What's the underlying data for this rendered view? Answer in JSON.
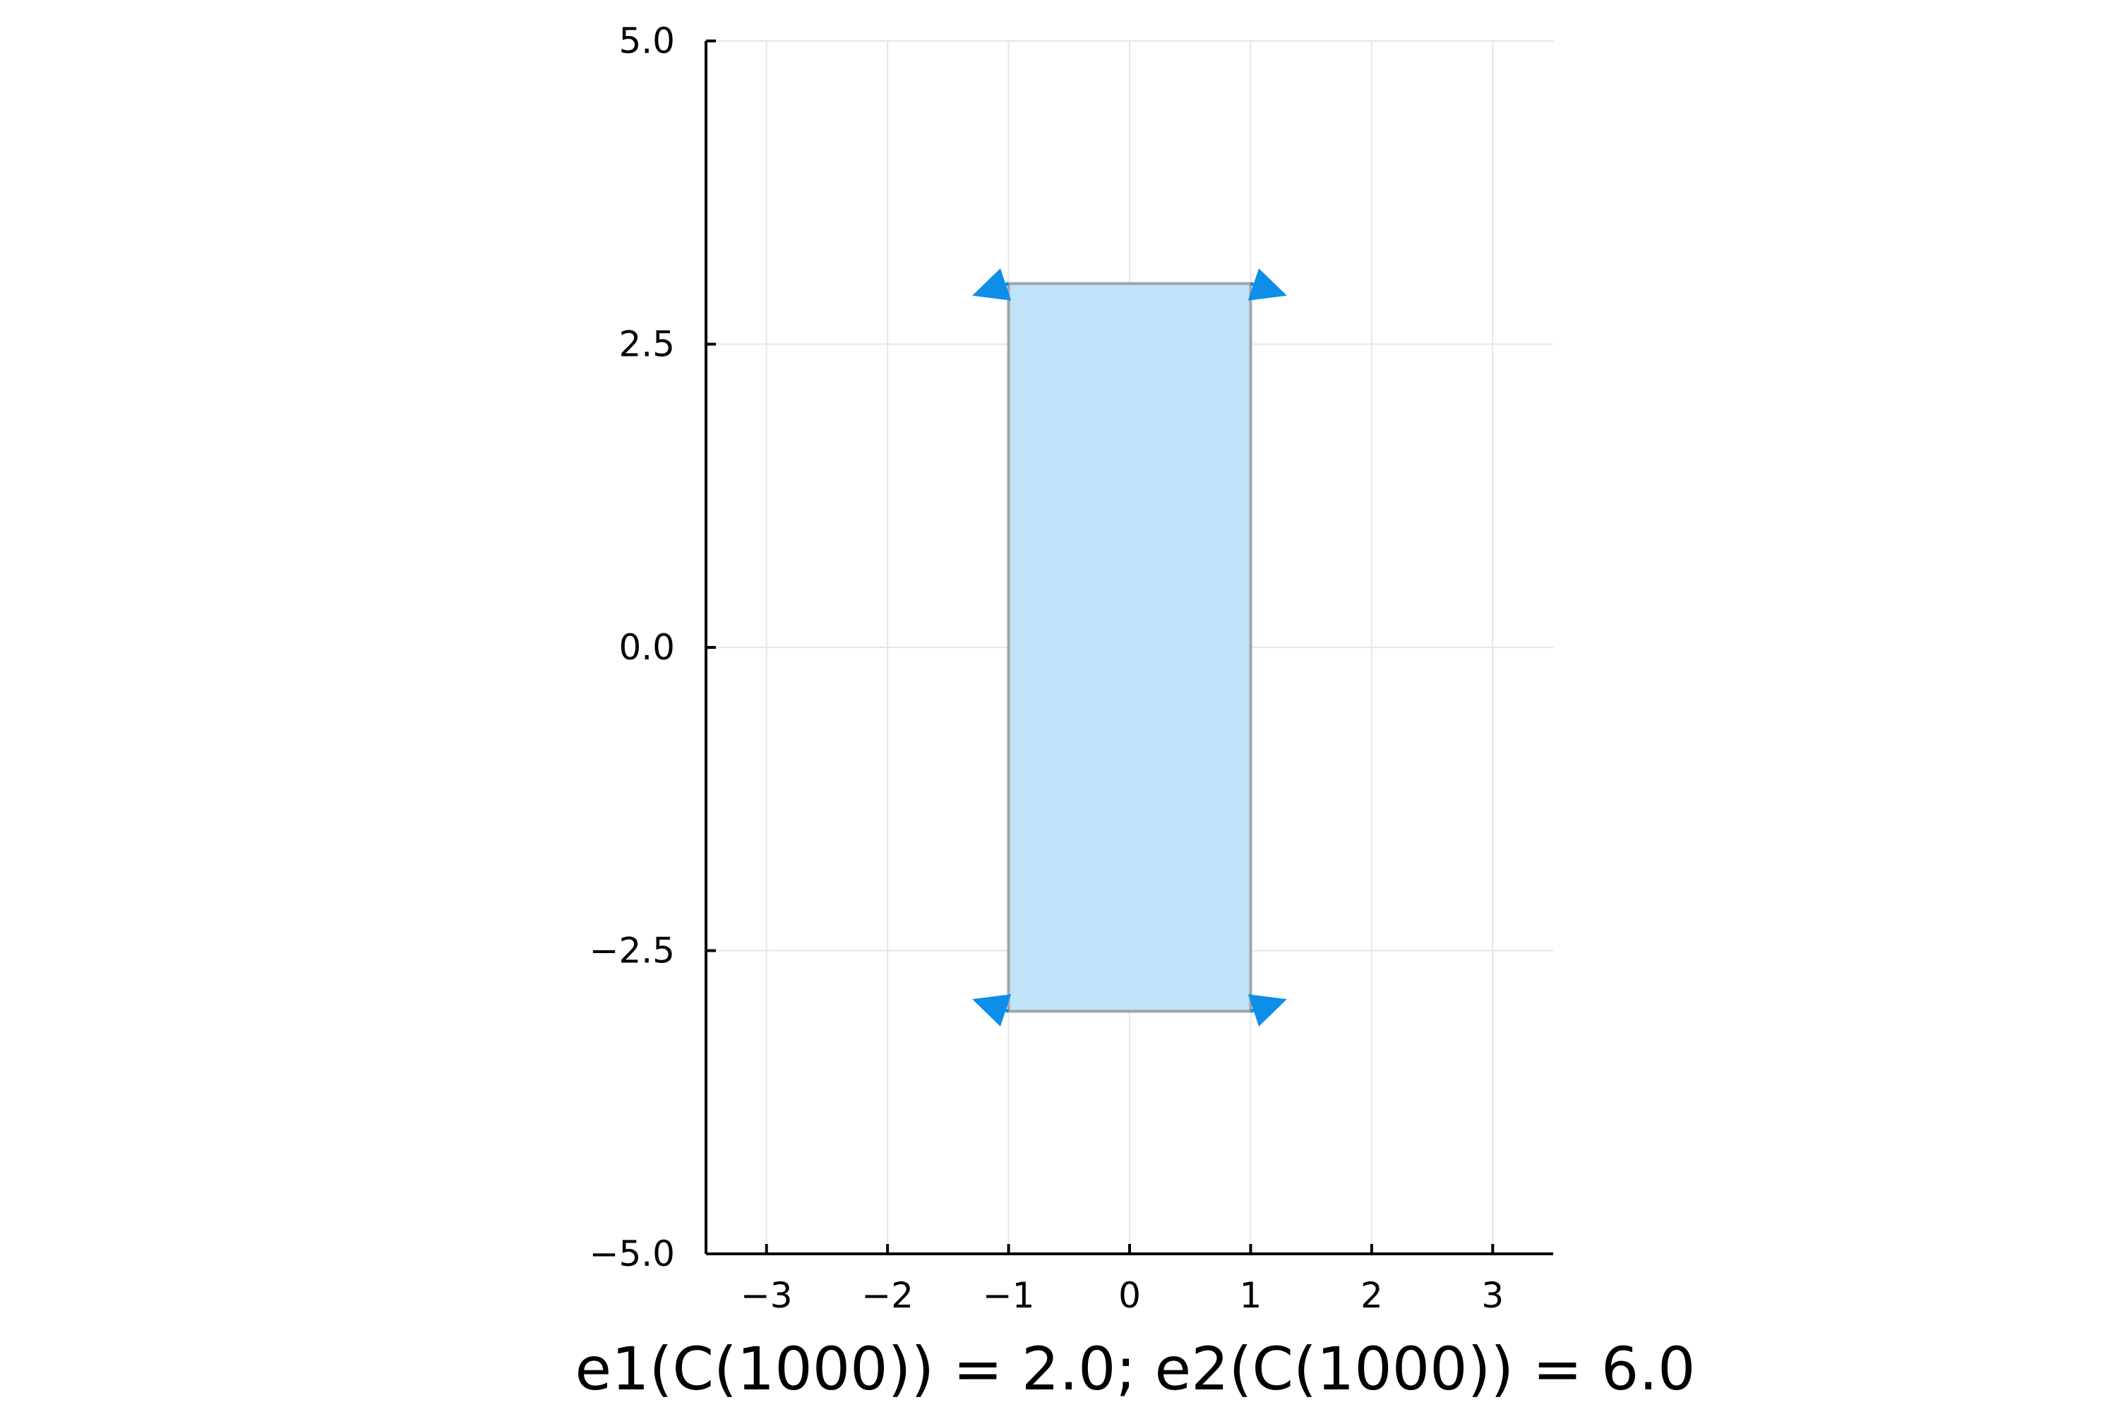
{
  "chart_data": {
    "type": "area",
    "title": "",
    "xlabel": "e1(C(1000)) = 2.0; e2(C(1000)) = 6.0",
    "ylabel": "",
    "xlim": [
      -3.5,
      3.5
    ],
    "ylim": [
      -5.0,
      5.0
    ],
    "xticks": [
      -3,
      -2,
      -1,
      0,
      1,
      2,
      3
    ],
    "xtick_labels": [
      "−3",
      "−2",
      "−1",
      "0",
      "1",
      "2",
      "3"
    ],
    "yticks": [
      -5.0,
      -2.5,
      0.0,
      2.5,
      5.0
    ],
    "ytick_labels": [
      "−5.0",
      "−2.5",
      "0.0",
      "2.5",
      "5.0"
    ],
    "grid": true,
    "legend": "none",
    "series": [
      {
        "kind": "polygon",
        "x": [
          -1,
          1,
          1,
          -1
        ],
        "y": [
          3,
          3,
          -3,
          -3
        ],
        "fill_color": "#bfe3f8",
        "edge_color": "#a0a4a8"
      },
      {
        "kind": "quiver",
        "x": [
          -1,
          1,
          -1,
          1
        ],
        "y": [
          3,
          3,
          -3,
          -3
        ],
        "u": [
          -0.3,
          0.3,
          -0.3,
          0.3
        ],
        "v": [
          -0.1,
          -0.1,
          0.1,
          0.1
        ],
        "color": "#0d8ee8"
      }
    ]
  }
}
